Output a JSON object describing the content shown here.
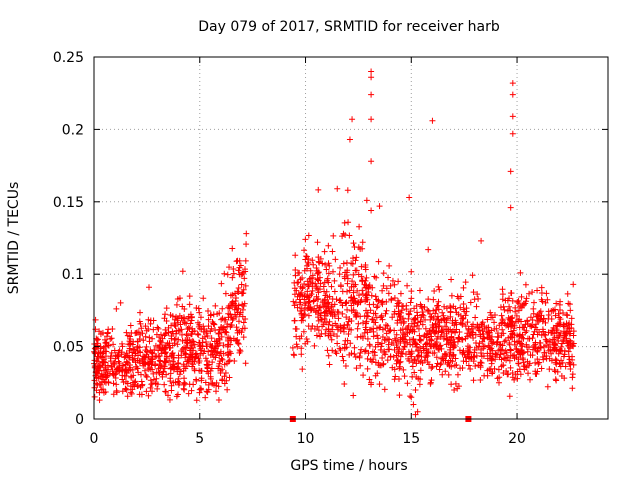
{
  "chart_data": {
    "type": "scatter",
    "title": "Day 079 of 2017, SRMTID for receiver harb",
    "xlabel": "GPS time / hours",
    "ylabel": "SRMTID / TECUs",
    "xlim": [
      0,
      24.3
    ],
    "ylim": [
      0,
      0.25
    ],
    "xticks": [
      0,
      5,
      10,
      15,
      20
    ],
    "xtick_labels": [
      "0",
      "5",
      "10",
      "15",
      "20"
    ],
    "yticks": [
      0,
      0.05,
      0.1,
      0.15,
      0.2,
      0.25
    ],
    "ytick_labels": [
      "0",
      "0.05",
      "0.1",
      "0.15",
      "0.2",
      "0.25"
    ],
    "grid": true,
    "marker": "plus",
    "series": [
      {
        "name": "SRMTID",
        "color": "#ff0000",
        "segments": [
          {
            "x_start": 0.0,
            "x_end": 7.2,
            "description_points": "dense cloud"
          }
        ],
        "profile": [
          {
            "x": 0.0,
            "mean": 0.04,
            "spread": 0.012
          },
          {
            "x": 1.0,
            "mean": 0.035,
            "spread": 0.012
          },
          {
            "x": 2.0,
            "mean": 0.04,
            "spread": 0.012
          },
          {
            "x": 3.0,
            "mean": 0.04,
            "spread": 0.013
          },
          {
            "x": 4.0,
            "mean": 0.05,
            "spread": 0.015
          },
          {
            "x": 5.0,
            "mean": 0.045,
            "spread": 0.015
          },
          {
            "x": 6.0,
            "mean": 0.05,
            "spread": 0.015
          },
          {
            "x": 7.0,
            "mean": 0.08,
            "spread": 0.02
          },
          {
            "x": 7.2,
            "mean": 0.09,
            "spread": 0.02
          },
          {
            "x": 9.5,
            "mean": 0.08,
            "spread": 0.02
          },
          {
            "x": 10.5,
            "mean": 0.085,
            "spread": 0.015
          },
          {
            "x": 11.5,
            "mean": 0.07,
            "spread": 0.02
          },
          {
            "x": 12.5,
            "mean": 0.08,
            "spread": 0.025
          },
          {
            "x": 13.5,
            "mean": 0.065,
            "spread": 0.02
          },
          {
            "x": 14.5,
            "mean": 0.055,
            "spread": 0.015
          },
          {
            "x": 15.5,
            "mean": 0.06,
            "spread": 0.015
          },
          {
            "x": 16.5,
            "mean": 0.055,
            "spread": 0.015
          },
          {
            "x": 17.5,
            "mean": 0.06,
            "spread": 0.015
          },
          {
            "x": 18.5,
            "mean": 0.05,
            "spread": 0.012
          },
          {
            "x": 19.5,
            "mean": 0.055,
            "spread": 0.015
          },
          {
            "x": 20.5,
            "mean": 0.055,
            "spread": 0.015
          },
          {
            "x": 21.5,
            "mean": 0.055,
            "spread": 0.015
          },
          {
            "x": 22.7,
            "mean": 0.05,
            "spread": 0.012
          }
        ],
        "gaps": [
          [
            7.2,
            9.4
          ]
        ],
        "outliers": [
          {
            "x": 13.1,
            "y": 0.24
          },
          {
            "x": 13.1,
            "y": 0.236
          },
          {
            "x": 13.1,
            "y": 0.224
          },
          {
            "x": 13.1,
            "y": 0.207
          },
          {
            "x": 13.1,
            "y": 0.178
          },
          {
            "x": 12.2,
            "y": 0.207
          },
          {
            "x": 12.1,
            "y": 0.193
          },
          {
            "x": 16.0,
            "y": 0.206
          },
          {
            "x": 19.8,
            "y": 0.232
          },
          {
            "x": 19.8,
            "y": 0.224
          },
          {
            "x": 19.8,
            "y": 0.209
          },
          {
            "x": 19.8,
            "y": 0.197
          },
          {
            "x": 19.7,
            "y": 0.171
          },
          {
            "x": 19.7,
            "y": 0.146
          },
          {
            "x": 14.9,
            "y": 0.153
          },
          {
            "x": 12.0,
            "y": 0.158
          },
          {
            "x": 11.5,
            "y": 0.159
          },
          {
            "x": 12.9,
            "y": 0.151
          },
          {
            "x": 13.5,
            "y": 0.147
          },
          {
            "x": 13.1,
            "y": 0.144
          },
          {
            "x": 7.2,
            "y": 0.128
          },
          {
            "x": 4.2,
            "y": 0.102
          },
          {
            "x": 18.3,
            "y": 0.123
          },
          {
            "x": 15.8,
            "y": 0.117
          },
          {
            "x": 13.1,
            "y": 0.025
          },
          {
            "x": 15.2,
            "y": 0.003
          },
          {
            "x": 15.3,
            "y": 0.005
          },
          {
            "x": 15.1,
            "y": 0.01
          },
          {
            "x": 15.0,
            "y": 0.015
          },
          {
            "x": 15.2,
            "y": 0.02
          },
          {
            "x": 9.4,
            "y": 0.0
          },
          {
            "x": 17.7,
            "y": 0.0
          }
        ]
      }
    ]
  }
}
